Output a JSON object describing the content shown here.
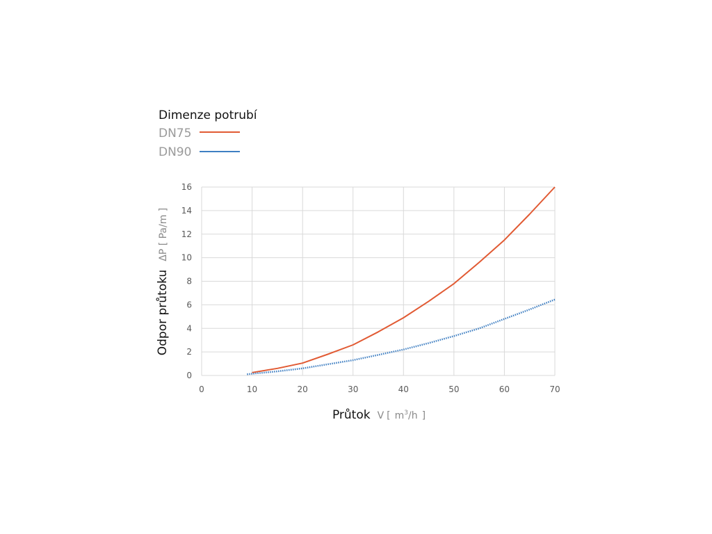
{
  "chart_data": {
    "type": "line",
    "legend_title": "Dimenze potrubí",
    "legend_placement": "top-left",
    "grid": true,
    "xlabel": "Průtok",
    "xlabel_symbol": "V",
    "xlabel_unit_open": "[",
    "xlabel_unit_base": "m",
    "xlabel_unit_sup": "3",
    "xlabel_unit_rest": "/h",
    "xlabel_unit_close": "]",
    "ylabel": "Odpor průtoku",
    "ylabel_unit": "ΔP [ Pa/m ]",
    "xlim": [
      0,
      70
    ],
    "ylim": [
      0,
      16
    ],
    "xticks": [
      0,
      10,
      20,
      30,
      40,
      50,
      60,
      70
    ],
    "yticks": [
      0,
      2,
      4,
      6,
      8,
      10,
      12,
      14,
      16
    ],
    "series": [
      {
        "name": "DN75",
        "color": "#e15a33",
        "style": "solid",
        "x": [
          10,
          15,
          20,
          25,
          30,
          35,
          40,
          45,
          50,
          55,
          60,
          65,
          70
        ],
        "y": [
          0.25,
          0.6,
          1.05,
          1.8,
          2.6,
          3.7,
          4.9,
          6.3,
          7.8,
          9.6,
          11.5,
          13.7,
          16.0
        ]
      },
      {
        "name": "DN90",
        "color": "#3f7fc2",
        "style": "dotted",
        "x": [
          9,
          10,
          15,
          20,
          25,
          30,
          35,
          40,
          45,
          50,
          55,
          60,
          65,
          70
        ],
        "y": [
          0.1,
          0.15,
          0.35,
          0.6,
          0.95,
          1.3,
          1.75,
          2.2,
          2.75,
          3.35,
          4.0,
          4.8,
          5.6,
          6.45
        ]
      }
    ]
  }
}
